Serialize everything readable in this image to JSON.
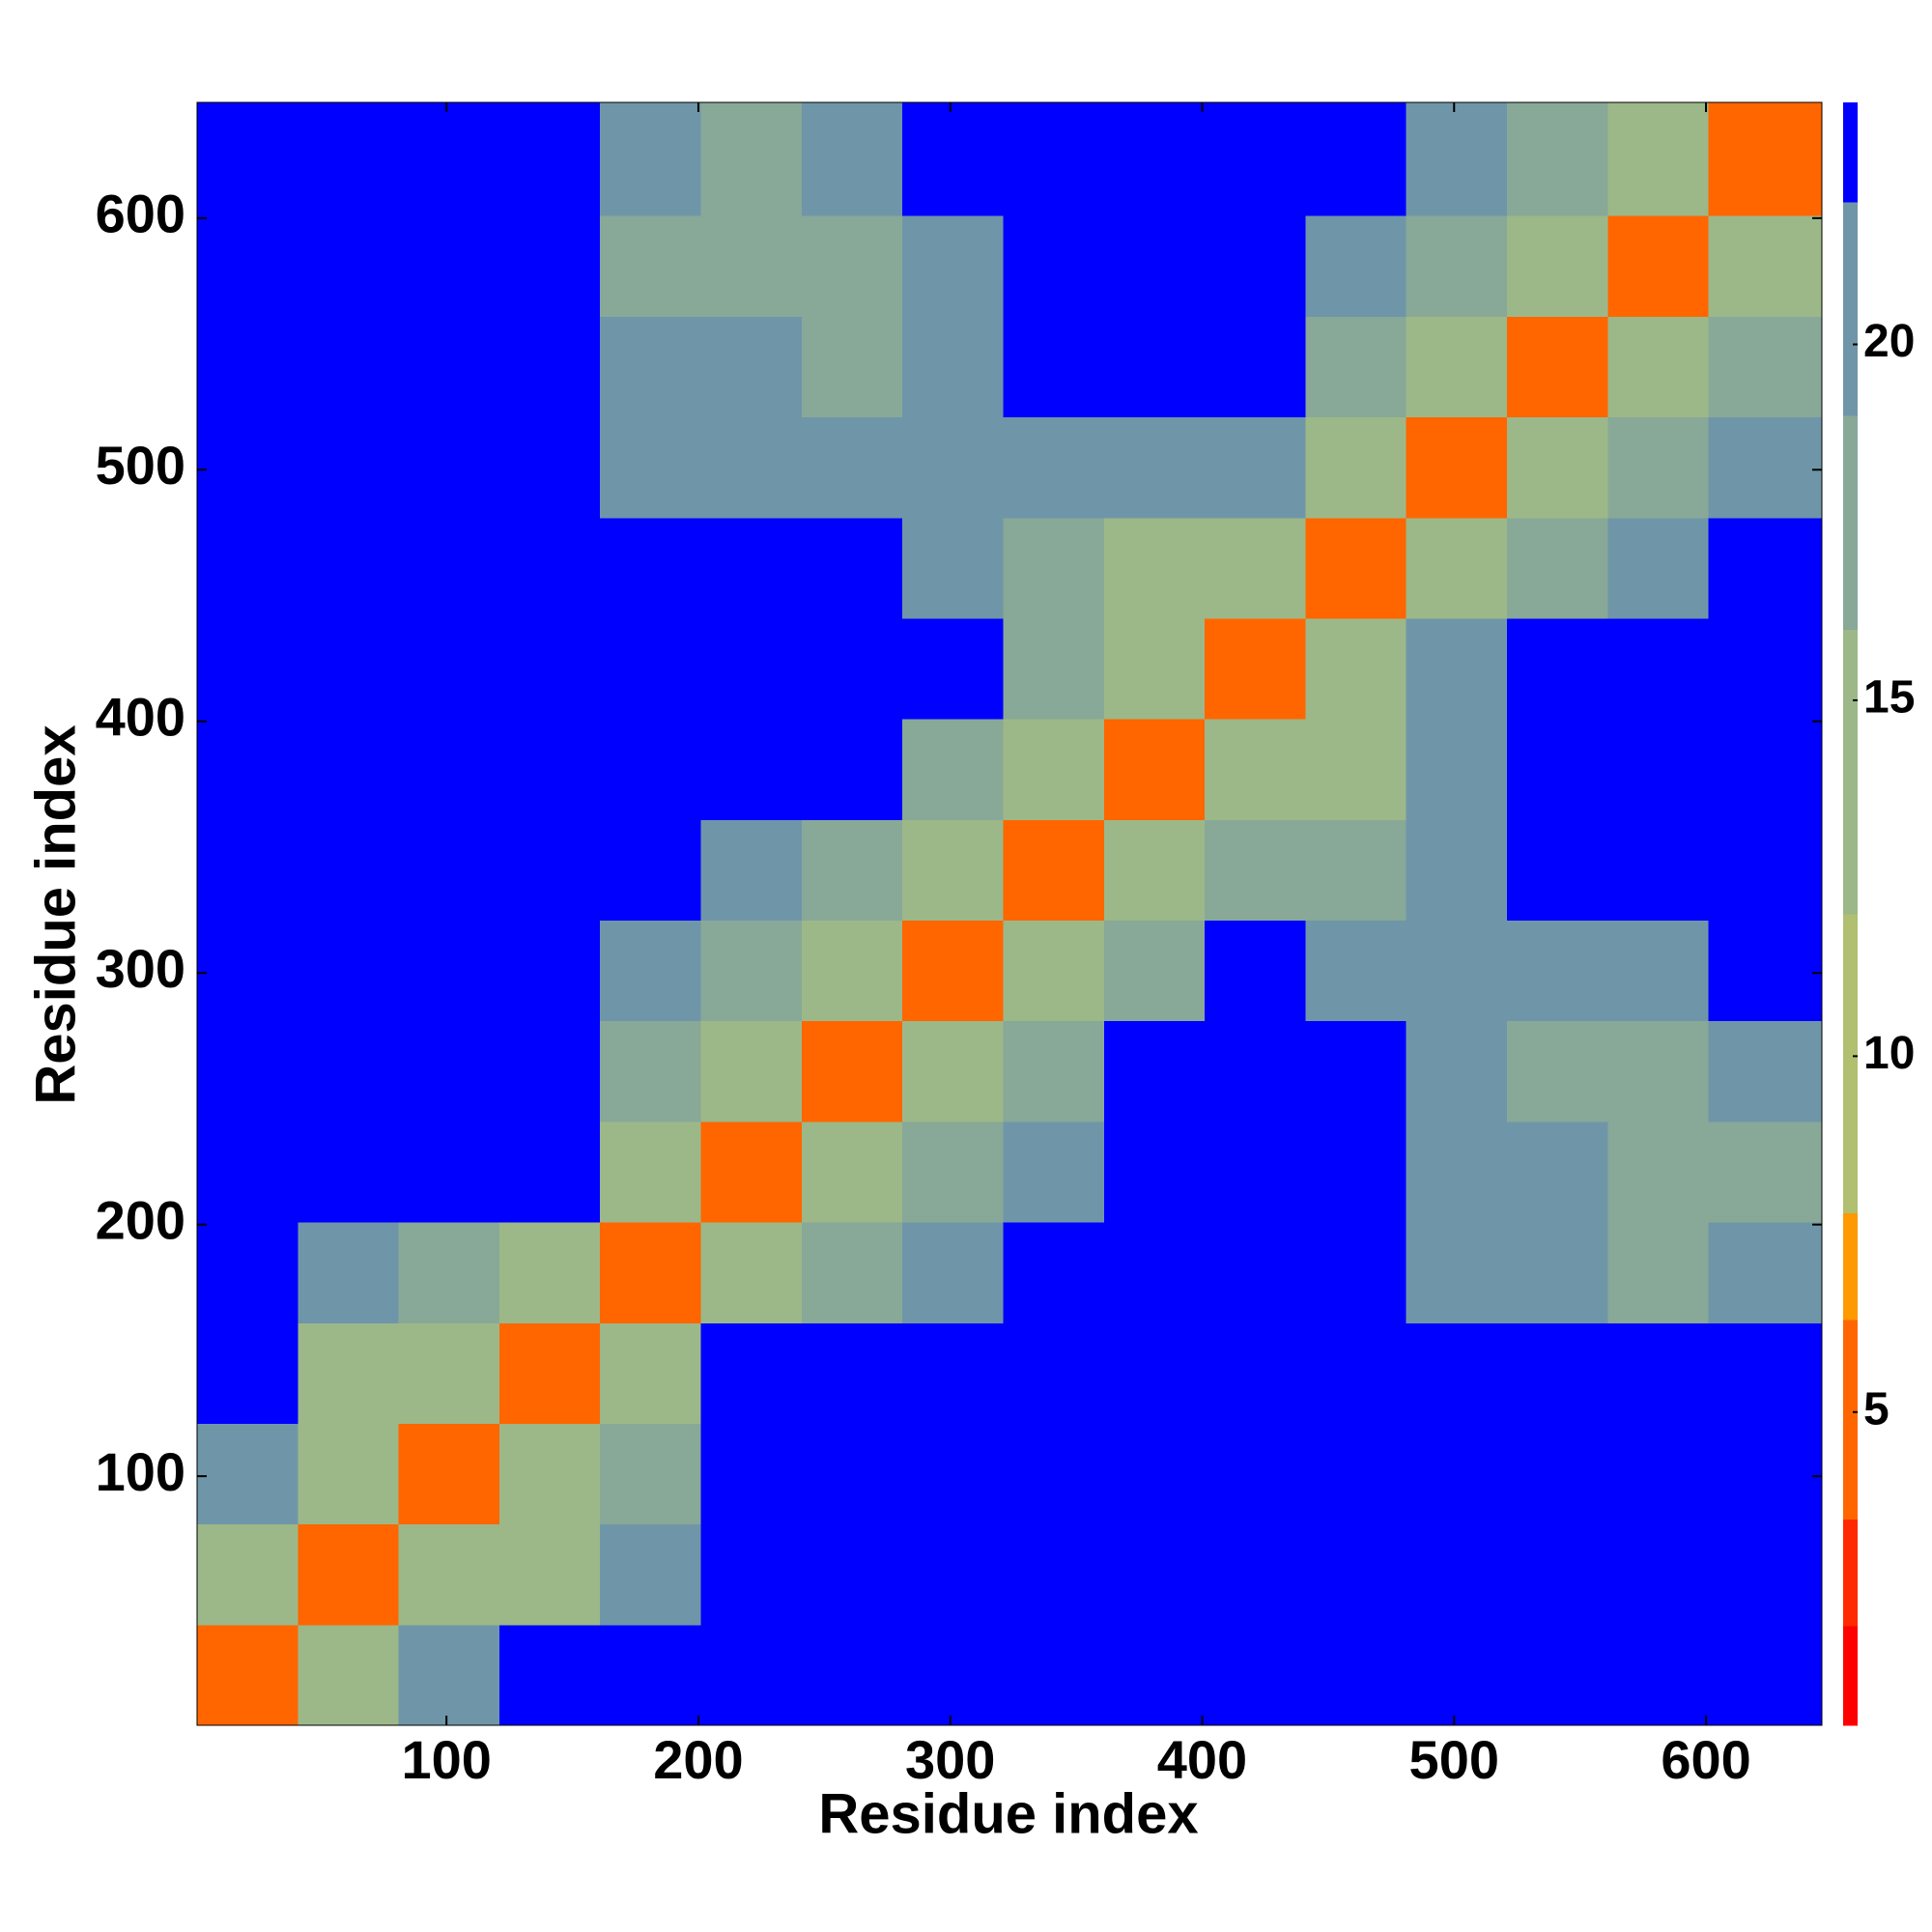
{
  "chart_data": {
    "type": "heatmap",
    "xlabel": "Residue index",
    "ylabel": "Residue index",
    "bins": [
      1,
      41,
      81,
      121,
      161,
      201,
      241,
      281,
      321,
      361,
      401,
      441,
      481,
      521,
      561,
      601,
      646
    ],
    "z": [
      [
        6,
        14,
        20,
        23,
        23,
        23,
        23,
        23,
        23,
        23,
        23,
        23,
        23,
        23,
        23,
        23
      ],
      [
        14,
        6,
        12,
        14,
        20,
        23,
        23,
        23,
        23,
        23,
        23,
        23,
        23,
        23,
        23,
        23
      ],
      [
        20,
        12,
        6,
        12,
        17,
        23,
        23,
        23,
        23,
        23,
        23,
        23,
        23,
        23,
        23,
        23
      ],
      [
        23,
        14,
        12,
        6,
        12,
        23,
        23,
        23,
        23,
        23,
        23,
        23,
        23,
        23,
        23,
        23
      ],
      [
        23,
        20,
        17,
        12,
        6,
        15,
        18,
        20,
        23,
        23,
        23,
        23,
        21,
        20,
        18,
        21
      ],
      [
        23,
        23,
        23,
        23,
        15,
        6,
        12,
        16,
        20,
        23,
        23,
        23,
        20,
        19,
        17,
        18
      ],
      [
        23,
        23,
        23,
        23,
        18,
        12,
        6,
        12,
        16,
        22,
        23,
        23,
        20,
        18,
        18,
        20
      ],
      [
        23,
        23,
        23,
        23,
        20,
        16,
        12,
        6,
        12,
        18,
        23,
        21,
        20,
        19,
        19,
        23
      ],
      [
        23,
        23,
        23,
        23,
        23,
        20,
        16,
        12,
        6,
        13,
        16,
        17,
        21,
        22,
        23,
        23
      ],
      [
        23,
        23,
        23,
        23,
        23,
        23,
        22,
        18,
        13,
        6,
        12,
        15,
        21,
        23,
        23,
        23
      ],
      [
        23,
        23,
        23,
        23,
        23,
        23,
        23,
        23,
        16,
        12,
        6,
        12,
        20,
        22,
        23,
        23
      ],
      [
        23,
        23,
        23,
        23,
        23,
        23,
        23,
        21,
        17,
        15,
        12,
        6,
        14,
        18,
        21,
        23
      ],
      [
        23,
        23,
        23,
        23,
        21,
        20,
        20,
        20,
        21,
        21,
        20,
        14,
        6,
        12,
        16,
        21
      ],
      [
        23,
        23,
        23,
        23,
        20,
        19,
        18,
        19,
        22,
        23,
        22,
        18,
        12,
        6,
        12,
        18
      ],
      [
        23,
        23,
        23,
        23,
        18,
        17,
        18,
        19,
        23,
        23,
        23,
        21,
        16,
        12,
        6,
        14
      ],
      [
        23,
        23,
        23,
        23,
        21,
        18,
        20,
        23,
        23,
        23,
        23,
        23,
        21,
        18,
        14,
        6
      ]
    ],
    "xlim": [
      1,
      646
    ],
    "ylim": [
      1,
      646
    ],
    "xticks": [
      100,
      200,
      300,
      400,
      500,
      600
    ],
    "yticks": [
      100,
      200,
      300,
      400,
      500,
      600
    ],
    "zlim": [
      0.6,
      23.4
    ],
    "zticks": [
      5,
      10,
      15,
      20
    ],
    "colorscale": [
      [
        0.6,
        "#ff0000"
      ],
      [
        2,
        "#ff2a00"
      ],
      [
        3.5,
        "#ff6600"
      ],
      [
        6.3,
        "#ff9900"
      ],
      [
        7.8,
        "#b0c070"
      ],
      [
        12,
        "#9cb888"
      ],
      [
        16,
        "#88a898"
      ],
      [
        19,
        "#6f96a8"
      ],
      [
        22,
        "#0000ff"
      ]
    ]
  }
}
